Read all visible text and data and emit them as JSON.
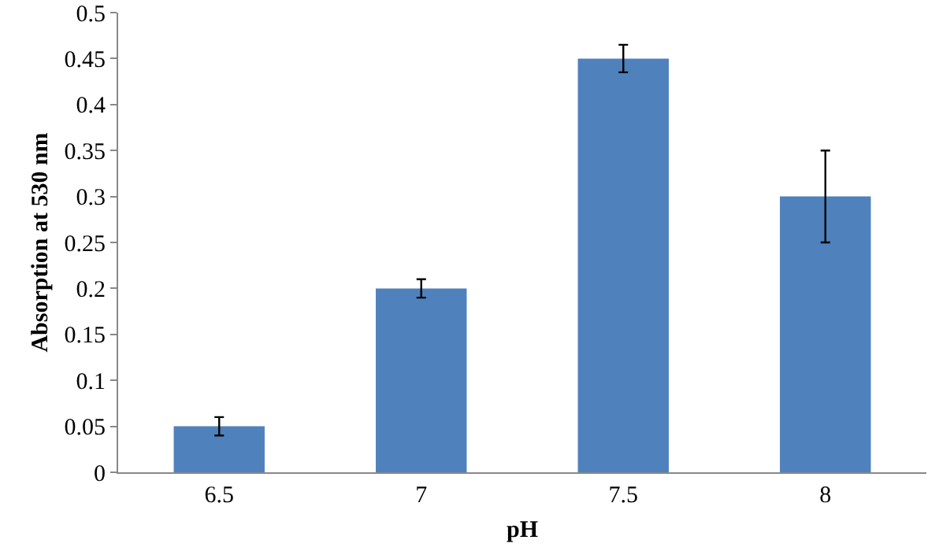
{
  "chart_data": {
    "type": "bar",
    "xlabel": "pH",
    "ylabel": "Absorption at 530 nm",
    "categories": [
      "6.5",
      "7",
      "7.5",
      "8"
    ],
    "values": [
      0.05,
      0.2,
      0.45,
      0.3
    ],
    "errors": [
      0.01,
      0.01,
      0.015,
      0.05
    ],
    "color": "#4f81bd",
    "ylim": [
      0,
      0.5
    ],
    "yticks": [
      0,
      0.05,
      0.1,
      0.15,
      0.2,
      0.25,
      0.3,
      0.35,
      0.4,
      0.45,
      0.5
    ],
    "grid": false
  }
}
